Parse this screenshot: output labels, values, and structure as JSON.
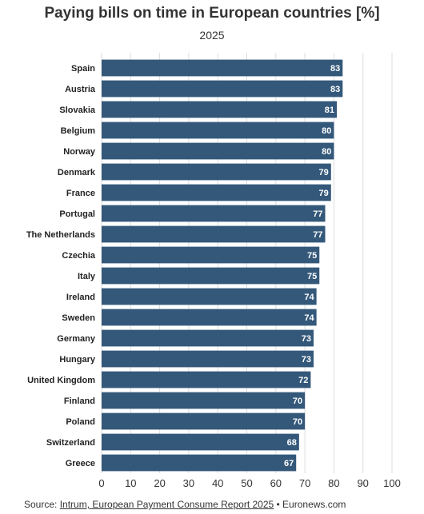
{
  "chart_data": {
    "type": "bar",
    "orientation": "horizontal",
    "title": "Paying bills on time in European countries [%]",
    "subtitle": "2025",
    "categories": [
      "Spain",
      "Austria",
      "Slovakia",
      "Belgium",
      "Norway",
      "Denmark",
      "France",
      "Portugal",
      "The Netherlands",
      "Czechia",
      "Italy",
      "Ireland",
      "Sweden",
      "Germany",
      "Hungary",
      "United Kingdom",
      "Finland",
      "Poland",
      "Switzerland",
      "Greece"
    ],
    "values": [
      83,
      83,
      81,
      80,
      80,
      79,
      79,
      77,
      77,
      75,
      75,
      74,
      74,
      73,
      73,
      72,
      70,
      70,
      68,
      67
    ],
    "xlim": [
      0,
      100
    ],
    "xticks": [
      0,
      10,
      20,
      30,
      40,
      50,
      60,
      70,
      80,
      90,
      100
    ],
    "grid": true,
    "colors": {
      "bar": "#34587a",
      "grid": "#dddddd",
      "label_text": "#ffffff"
    }
  },
  "footer": {
    "prefix": "Source: ",
    "source_link": "Intrum, European Payment Consume Report 2025",
    "suffix": " • Euronews.com"
  }
}
